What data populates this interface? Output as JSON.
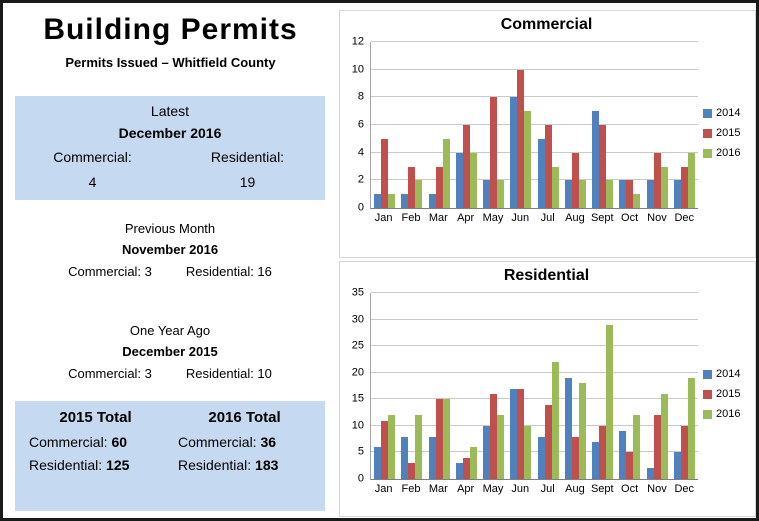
{
  "page": {
    "title": "Building Permits",
    "subtitle": "Permits Issued – Whitfield County"
  },
  "latest": {
    "heading": "Latest",
    "month": "December 2016",
    "commercial_label": "Commercial:",
    "commercial_value": "4",
    "residential_label": "Residential:",
    "residential_value": "19"
  },
  "previous_month": {
    "heading": "Previous Month",
    "month": "November 2016",
    "commercial": "Commercial: 3",
    "residential": "Residential: 16"
  },
  "one_year_ago": {
    "heading": "One Year Ago",
    "month": "December 2015",
    "commercial": "Commercial: 3",
    "residential": "Residential: 10"
  },
  "totals": {
    "col_2015": {
      "heading": "2015 Total",
      "commercial_label": "Commercial: ",
      "commercial_value": "60",
      "residential_label": "Residential: ",
      "residential_value": "125"
    },
    "col_2016": {
      "heading": "2016 Total",
      "commercial_label": "Commercial: ",
      "commercial_value": "36",
      "residential_label": "Residential: ",
      "residential_value": "183"
    }
  },
  "colors": {
    "series_2014": "#4F81BD",
    "series_2015": "#C0504D",
    "series_2016": "#9BBB59",
    "panel_blue": "#C5D9F1"
  },
  "chart_data": [
    {
      "type": "bar",
      "title": "Commercial",
      "categories": [
        "Jan",
        "Feb",
        "Mar",
        "Apr",
        "May",
        "Jun",
        "Jul",
        "Aug",
        "Sept",
        "Oct",
        "Nov",
        "Dec"
      ],
      "series": [
        {
          "name": "2014",
          "color": "#4F81BD",
          "values": [
            1,
            1,
            1,
            4,
            2,
            8,
            5,
            2,
            7,
            2,
            2,
            2
          ]
        },
        {
          "name": "2015",
          "color": "#C0504D",
          "values": [
            5,
            3,
            3,
            6,
            8,
            10,
            6,
            4,
            6,
            2,
            4,
            3
          ]
        },
        {
          "name": "2016",
          "color": "#9BBB59",
          "values": [
            1,
            2,
            5,
            4,
            2,
            7,
            3,
            2,
            2,
            1,
            3,
            4
          ]
        }
      ],
      "ylim": [
        0,
        12
      ],
      "ytick": 2,
      "grid": true,
      "legend_position": "right"
    },
    {
      "type": "bar",
      "title": "Residential",
      "categories": [
        "Jan",
        "Feb",
        "Mar",
        "Apr",
        "May",
        "Jun",
        "Jul",
        "Aug",
        "Sept",
        "Oct",
        "Nov",
        "Dec"
      ],
      "series": [
        {
          "name": "2014",
          "color": "#4F81BD",
          "values": [
            6,
            8,
            8,
            3,
            10,
            17,
            8,
            19,
            7,
            9,
            2,
            5
          ]
        },
        {
          "name": "2015",
          "color": "#C0504D",
          "values": [
            11,
            3,
            15,
            4,
            16,
            17,
            14,
            8,
            10,
            5,
            12,
            10
          ]
        },
        {
          "name": "2016",
          "color": "#9BBB59",
          "values": [
            12,
            12,
            15,
            6,
            12,
            10,
            22,
            18,
            29,
            12,
            16,
            19
          ]
        }
      ],
      "ylim": [
        0,
        35
      ],
      "ytick": 5,
      "grid": true,
      "legend_position": "right"
    }
  ]
}
